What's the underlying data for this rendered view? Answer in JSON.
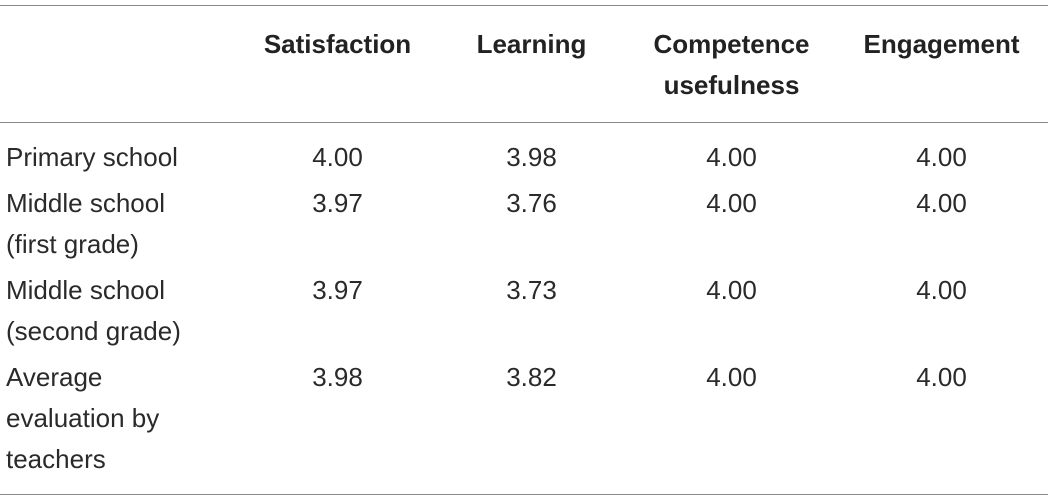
{
  "table": {
    "header": [
      "",
      "Satisfaction",
      "Learning",
      "Competence usefulness",
      "Engagement"
    ],
    "rows": [
      [
        "Primary school",
        "4.00",
        "3.98",
        "4.00",
        "4.00"
      ],
      [
        "Middle school (first grade)",
        "3.97",
        "3.76",
        "4.00",
        "4.00"
      ],
      [
        "Middle school (second grade)",
        "3.97",
        "3.73",
        "4.00",
        "4.00"
      ],
      [
        "Average evaluation by teachers",
        "3.98",
        "3.82",
        "4.00",
        "4.00"
      ]
    ]
  }
}
